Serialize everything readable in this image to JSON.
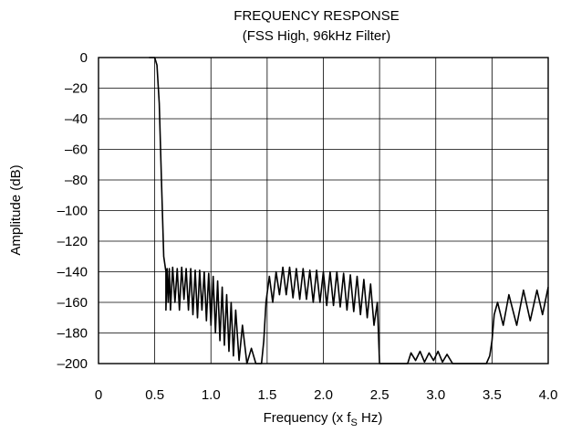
{
  "chart_data": {
    "type": "line",
    "title": "FREQUENCY RESPONSE",
    "subtitle": "(FSS High, 96kHz Filter)",
    "xlabel": {
      "main": "Frequency (x f",
      "sub": "S",
      "suffix": " Hz)"
    },
    "ylabel": "Amplitude (dB)",
    "xlim": [
      0,
      4.0
    ],
    "ylim": [
      -200,
      0
    ],
    "x_ticks": [
      0,
      0.5,
      1.0,
      1.5,
      2.0,
      2.5,
      3.0,
      3.5,
      4.0
    ],
    "x_tick_labels": [
      "0",
      "0.5",
      "1.0",
      "1.5",
      "2.0",
      "2.5",
      "3.0",
      "3.5",
      "4.0"
    ],
    "y_ticks": [
      0,
      -20,
      -40,
      -60,
      -80,
      -100,
      -120,
      -140,
      -160,
      -180,
      -200
    ],
    "y_tick_labels": [
      "0",
      "–20",
      "–40",
      "–60",
      "–80",
      "–100",
      "–120",
      "–140",
      "–160",
      "–180",
      "–200"
    ],
    "grid": true,
    "series": [
      {
        "color": "#000000",
        "points": [
          [
            0.45,
            0
          ],
          [
            0.5,
            0
          ],
          [
            0.52,
            -5
          ],
          [
            0.54,
            -30
          ],
          [
            0.56,
            -80
          ],
          [
            0.58,
            -130
          ],
          [
            0.6,
            -140
          ],
          [
            0.6,
            -165
          ],
          [
            0.61,
            -138
          ],
          [
            0.62,
            -160
          ],
          [
            0.63,
            -138
          ],
          [
            0.64,
            -165
          ],
          [
            0.66,
            -137
          ],
          [
            0.68,
            -160
          ],
          [
            0.7,
            -138
          ],
          [
            0.72,
            -165
          ],
          [
            0.74,
            -137
          ],
          [
            0.76,
            -158
          ],
          [
            0.78,
            -138
          ],
          [
            0.8,
            -165
          ],
          [
            0.82,
            -138
          ],
          [
            0.84,
            -168
          ],
          [
            0.86,
            -139
          ],
          [
            0.88,
            -170
          ],
          [
            0.9,
            -139
          ],
          [
            0.92,
            -165
          ],
          [
            0.94,
            -140
          ],
          [
            0.96,
            -172
          ],
          [
            0.98,
            -141
          ],
          [
            1.0,
            -175
          ],
          [
            1.02,
            -143
          ],
          [
            1.04,
            -180
          ],
          [
            1.06,
            -146
          ],
          [
            1.08,
            -185
          ],
          [
            1.1,
            -150
          ],
          [
            1.12,
            -188
          ],
          [
            1.14,
            -155
          ],
          [
            1.16,
            -192
          ],
          [
            1.18,
            -160
          ],
          [
            1.2,
            -195
          ],
          [
            1.22,
            -165
          ],
          [
            1.25,
            -198
          ],
          [
            1.28,
            -175
          ],
          [
            1.32,
            -200
          ],
          [
            1.36,
            -190
          ],
          [
            1.4,
            -200
          ],
          [
            1.45,
            -200
          ],
          [
            1.47,
            -185
          ],
          [
            1.49,
            -160
          ],
          [
            1.52,
            -143
          ],
          [
            1.55,
            -160
          ],
          [
            1.58,
            -140
          ],
          [
            1.61,
            -155
          ],
          [
            1.64,
            -137
          ],
          [
            1.67,
            -155
          ],
          [
            1.7,
            -137
          ],
          [
            1.73,
            -157
          ],
          [
            1.76,
            -138
          ],
          [
            1.79,
            -158
          ],
          [
            1.82,
            -138
          ],
          [
            1.85,
            -158
          ],
          [
            1.88,
            -139
          ],
          [
            1.91,
            -160
          ],
          [
            1.94,
            -139
          ],
          [
            1.97,
            -160
          ],
          [
            2.0,
            -140
          ],
          [
            2.03,
            -162
          ],
          [
            2.06,
            -140
          ],
          [
            2.09,
            -162
          ],
          [
            2.12,
            -140
          ],
          [
            2.15,
            -163
          ],
          [
            2.18,
            -141
          ],
          [
            2.21,
            -165
          ],
          [
            2.24,
            -142
          ],
          [
            2.27,
            -166
          ],
          [
            2.3,
            -143
          ],
          [
            2.33,
            -168
          ],
          [
            2.36,
            -145
          ],
          [
            2.39,
            -170
          ],
          [
            2.42,
            -148
          ],
          [
            2.45,
            -175
          ],
          [
            2.48,
            -160
          ],
          [
            2.5,
            -200
          ],
          [
            2.75,
            -200
          ],
          [
            2.78,
            -193
          ],
          [
            2.82,
            -198
          ],
          [
            2.86,
            -192
          ],
          [
            2.9,
            -199
          ],
          [
            2.94,
            -193
          ],
          [
            2.98,
            -198
          ],
          [
            3.02,
            -192
          ],
          [
            3.06,
            -199
          ],
          [
            3.1,
            -194
          ],
          [
            3.15,
            -200
          ],
          [
            3.45,
            -200
          ],
          [
            3.48,
            -195
          ],
          [
            3.5,
            -185
          ],
          [
            3.52,
            -168
          ],
          [
            3.55,
            -160
          ],
          [
            3.6,
            -175
          ],
          [
            3.65,
            -155
          ],
          [
            3.72,
            -175
          ],
          [
            3.78,
            -152
          ],
          [
            3.84,
            -172
          ],
          [
            3.9,
            -152
          ],
          [
            3.95,
            -168
          ],
          [
            4.0,
            -150
          ]
        ]
      }
    ]
  }
}
